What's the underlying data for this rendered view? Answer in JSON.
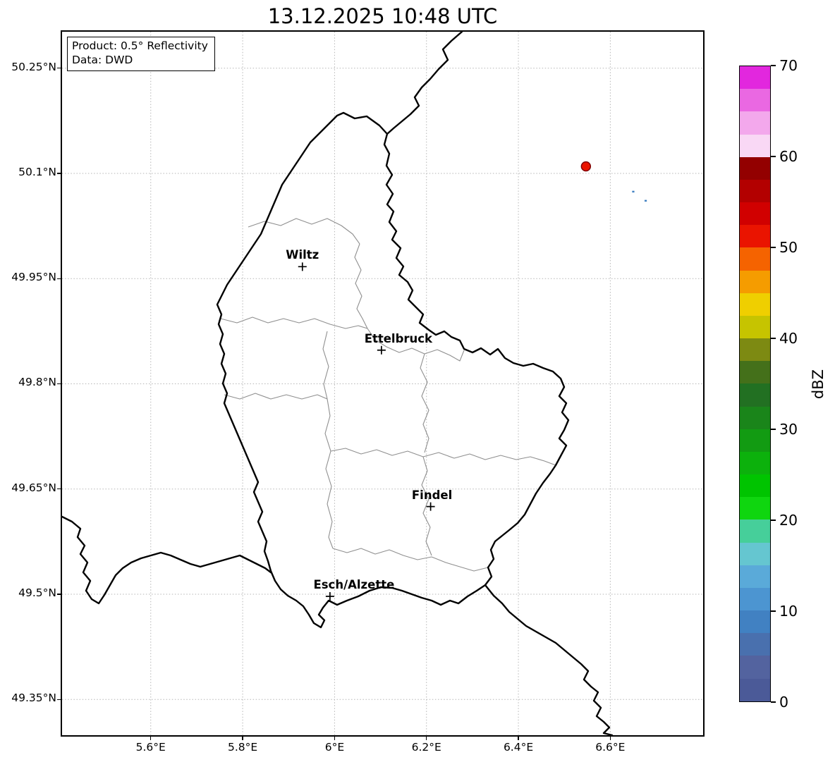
{
  "title": "13.12.2025 10:48 UTC",
  "info_box": {
    "line1": "Product: 0.5° Reflectivity",
    "line2": "Data: DWD"
  },
  "colorbar": {
    "label": "dBZ",
    "min": 0,
    "max": 70,
    "tick_values": [
      0,
      10,
      20,
      30,
      40,
      50,
      60,
      70
    ],
    "tick_labels": [
      "0",
      "10",
      "20",
      "30",
      "40",
      "50",
      "60",
      "70"
    ],
    "colors_bottom_to_top": [
      "#4b5a98",
      "#53639f",
      "#4970ae",
      "#4181c2",
      "#4c95d1",
      "#5aaad9",
      "#65c6d0",
      "#46cf9a",
      "#0fd60f",
      "#00c400",
      "#0cb10c",
      "#129b12",
      "#1a851a",
      "#227022",
      "#44701a",
      "#7d8a12",
      "#c6c400",
      "#efcf00",
      "#f59c00",
      "#f56300",
      "#ea1400",
      "#d10000",
      "#b30000",
      "#930000",
      "#f9d8f5",
      "#f3a8ec",
      "#ea68e2",
      "#e227de"
    ]
  },
  "axes": {
    "extent": {
      "lon_min": 5.407,
      "lon_max": 6.802,
      "lat_min": 49.299,
      "lat_max": 50.302
    },
    "lat_ticks": [
      {
        "value": 50.25,
        "label": "50.25°N"
      },
      {
        "value": 50.1,
        "label": "50.1°N"
      },
      {
        "value": 49.95,
        "label": "49.95°N"
      },
      {
        "value": 49.8,
        "label": "49.8°N"
      },
      {
        "value": 49.65,
        "label": "49.65°N"
      },
      {
        "value": 49.5,
        "label": "49.5°N"
      },
      {
        "value": 49.35,
        "label": "49.35°N"
      }
    ],
    "lon_ticks": [
      {
        "value": 5.6,
        "label": "5.6°E"
      },
      {
        "value": 5.8,
        "label": "5.8°E"
      },
      {
        "value": 6.0,
        "label": "6°E"
      },
      {
        "value": 6.2,
        "label": "6.2°E"
      },
      {
        "value": 6.4,
        "label": "6.4°E"
      },
      {
        "value": 6.6,
        "label": "6.6°E"
      }
    ]
  },
  "chart_data": {
    "type": "map",
    "title": "13.12.2025 10:48 UTC",
    "product": "0.5° Reflectivity",
    "data_source": "DWD",
    "units": "dBZ",
    "extent": {
      "lon_min": 5.407,
      "lon_max": 6.802,
      "lat_min": 49.299,
      "lat_max": 50.302
    },
    "cities": [
      {
        "name": "Wiltz",
        "lon": 5.93,
        "lat": 49.967
      },
      {
        "name": "Ettelbruck",
        "lon": 6.102,
        "lat": 49.848
      },
      {
        "name": "Findel",
        "lon": 6.209,
        "lat": 49.625
      },
      {
        "name": "Esch/Alzette",
        "lon": 5.99,
        "lat": 49.497
      }
    ],
    "echoes": [
      {
        "lon": 6.547,
        "lat": 50.11,
        "dbz": 52
      },
      {
        "lon": 6.65,
        "lat": 50.074,
        "dbz": 8
      },
      {
        "lon": 6.677,
        "lat": 50.061,
        "dbz": 8
      }
    ]
  }
}
